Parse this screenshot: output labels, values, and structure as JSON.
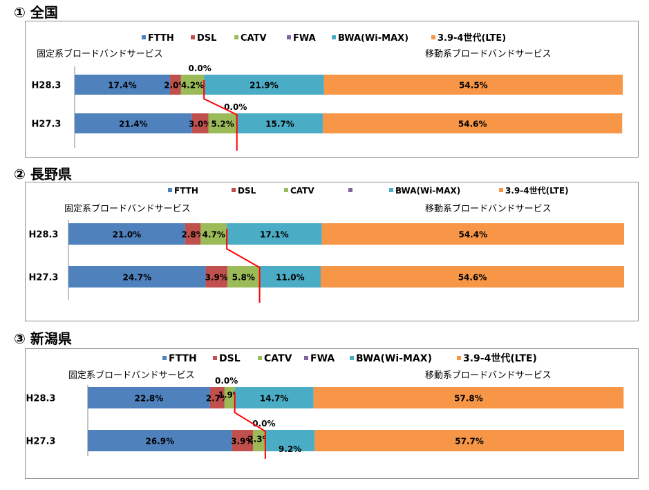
{
  "colors": {
    "FTTH": "#4f81bd",
    "DSL": "#c0504d",
    "CATV": "#9bbb59",
    "FWA": "#8064a2",
    "BWA": "#4bacc6",
    "LTE": "#f79646",
    "divider": "#ff0000"
  },
  "chart_data": [
    {
      "type": "bar",
      "orientation": "horizontal",
      "stacked": "100%",
      "title": "① 全国",
      "legend": [
        "FTTH",
        "DSL",
        "CATV",
        "FWA",
        "BWA(Wi-MAX)",
        "3.9-4世代(LTE)"
      ],
      "group_labels": {
        "fixed": "固定系ブロードバンドサービス",
        "mobile": "移動系ブロードバンドサービス"
      },
      "categories": [
        "H28.3",
        "H27.3"
      ],
      "series": [
        {
          "name": "FTTH",
          "values": [
            17.4,
            21.4
          ],
          "labels": [
            "17.4%",
            "21.4%"
          ]
        },
        {
          "name": "DSL",
          "values": [
            2.0,
            3.0
          ],
          "labels": [
            "2.0%",
            "3.0%"
          ]
        },
        {
          "name": "CATV",
          "values": [
            4.2,
            5.2
          ],
          "labels": [
            "4.2%",
            "5.2%"
          ]
        },
        {
          "name": "FWA",
          "values": [
            0.0,
            0.0
          ],
          "labels": [
            "0.0%",
            "0.0%"
          ]
        },
        {
          "name": "BWA(Wi-MAX)",
          "values": [
            21.9,
            15.7
          ],
          "labels": [
            "21.9%",
            "15.7%"
          ]
        },
        {
          "name": "3.9-4世代(LTE)",
          "values": [
            54.5,
            54.6
          ],
          "labels": [
            "54.5%",
            "54.6%"
          ]
        }
      ]
    },
    {
      "type": "bar",
      "orientation": "horizontal",
      "stacked": "100%",
      "title": "② 長野県",
      "legend": [
        "FTTH",
        "DSL",
        "CATV",
        "",
        "BWA(Wi-MAX)",
        "3.9-4世代(LTE)"
      ],
      "group_labels": {
        "fixed": "固定系ブロードバンドサービス",
        "mobile": "移動系ブロードバンドサービス"
      },
      "categories": [
        "H28.3",
        "H27.3"
      ],
      "series": [
        {
          "name": "FTTH",
          "values": [
            21.0,
            24.7
          ],
          "labels": [
            "21.0%",
            "24.7%"
          ]
        },
        {
          "name": "DSL",
          "values": [
            2.8,
            3.9
          ],
          "labels": [
            "2.8%",
            "3.9%"
          ]
        },
        {
          "name": "CATV",
          "values": [
            4.7,
            5.8
          ],
          "labels": [
            "4.7%",
            "5.8%"
          ]
        },
        {
          "name": "BWA(Wi-MAX)",
          "values": [
            17.1,
            11.0
          ],
          "labels": [
            "17.1%",
            "11.0%"
          ]
        },
        {
          "name": "3.9-4世代(LTE)",
          "values": [
            54.4,
            54.6
          ],
          "labels": [
            "54.4%",
            "54.6%"
          ]
        }
      ]
    },
    {
      "type": "bar",
      "orientation": "horizontal",
      "stacked": "100%",
      "title": "③ 新潟県",
      "legend": [
        "FTTH",
        "DSL",
        "CATV",
        "FWA",
        "BWA(Wi-MAX)",
        "3.9-4世代(LTE)"
      ],
      "group_labels": {
        "fixed": "固定系ブロードバンドサービス",
        "mobile": "移動系ブロードバンドサービス"
      },
      "categories": [
        "H28.3",
        "H27.3"
      ],
      "series": [
        {
          "name": "FTTH",
          "values": [
            22.8,
            26.9
          ],
          "labels": [
            "22.8%",
            "26.9%"
          ]
        },
        {
          "name": "DSL",
          "values": [
            2.7,
            3.9
          ],
          "labels": [
            "2.7%",
            "3.9%"
          ]
        },
        {
          "name": "CATV",
          "values": [
            1.9,
            2.3
          ],
          "labels": [
            "1.9%",
            "2.3%"
          ]
        },
        {
          "name": "FWA",
          "values": [
            0.0,
            0.0
          ],
          "labels": [
            "0.0%",
            "0.0%"
          ]
        },
        {
          "name": "BWA(Wi-MAX)",
          "values": [
            14.7,
            9.2
          ],
          "labels": [
            "14.7%",
            "9.2%"
          ]
        },
        {
          "name": "3.9-4世代(LTE)",
          "values": [
            57.8,
            57.7
          ],
          "labels": [
            "57.8%",
            "57.7%"
          ]
        }
      ]
    }
  ]
}
